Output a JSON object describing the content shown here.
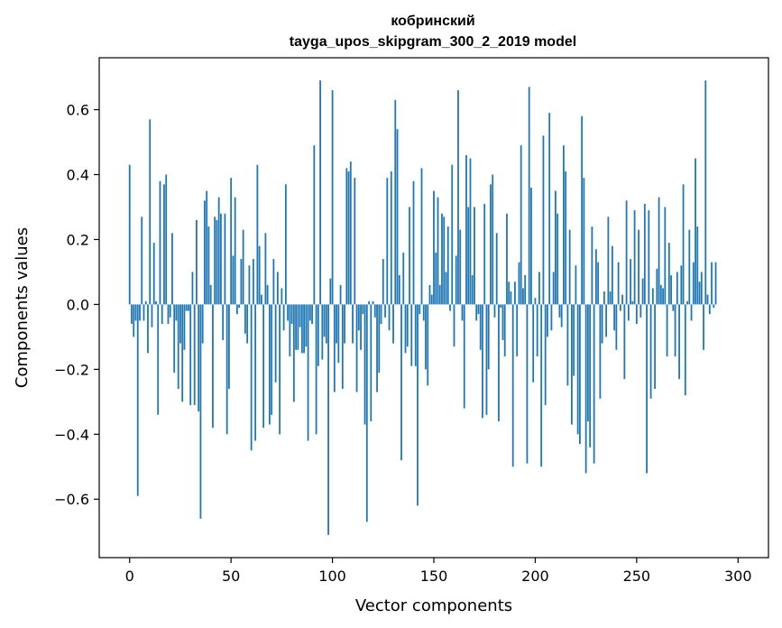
{
  "chart_data": {
    "type": "bar",
    "title": "кобринский",
    "subtitle": "tayga_upos_skipgram_300_2_2019 model",
    "xlabel": "Vector components",
    "ylabel": "Components values",
    "xlim": [
      -15,
      315
    ],
    "ylim": [
      -0.78,
      0.76
    ],
    "xticks": [
      0,
      50,
      100,
      150,
      200,
      250,
      300
    ],
    "yticks": [
      -0.6,
      -0.4,
      -0.2,
      0.0,
      0.2,
      0.4,
      0.6
    ],
    "xtick_labels": [
      "0",
      "50",
      "100",
      "150",
      "200",
      "250",
      "300"
    ],
    "ytick_labels": [
      "−0.6",
      "−0.4",
      "−0.2",
      "0.0",
      "0.2",
      "0.4",
      "0.6"
    ],
    "bar_color": "#1f77b4",
    "grid": false,
    "values": [
      0.43,
      -0.06,
      -0.1,
      -0.05,
      -0.59,
      -0.05,
      0.27,
      -0.05,
      0.01,
      -0.15,
      0.57,
      -0.07,
      0.19,
      0.01,
      -0.34,
      0.38,
      -0.06,
      0.37,
      0.4,
      -0.06,
      -0.04,
      0.22,
      -0.21,
      -0.05,
      -0.26,
      -0.12,
      -0.3,
      -0.14,
      -0.02,
      -0.02,
      -0.31,
      0.1,
      -0.31,
      0.26,
      -0.33,
      -0.66,
      -0.12,
      0.32,
      0.35,
      0.24,
      0.06,
      -0.38,
      0.27,
      0.26,
      0.33,
      0.28,
      -0.11,
      0.28,
      -0.4,
      -0.26,
      0.39,
      0.15,
      0.33,
      -0.03,
      -0.01,
      0.14,
      0.23,
      -0.09,
      -0.12,
      0.12,
      -0.45,
      0.14,
      -0.42,
      0.43,
      0.18,
      0.03,
      -0.38,
      0.22,
      0.06,
      -0.37,
      -0.34,
      0.14,
      -0.24,
      0.1,
      -0.4,
      0.05,
      -0.08,
      0.37,
      -0.05,
      -0.16,
      -0.06,
      -0.3,
      -0.14,
      -0.14,
      -0.07,
      -0.15,
      -0.15,
      -0.13,
      -0.42,
      -0.05,
      -0.06,
      0.49,
      -0.4,
      -0.19,
      0.69,
      -0.17,
      -0.1,
      -0.12,
      -0.71,
      0.08,
      0.66,
      -0.27,
      -0.12,
      -0.18,
      0.06,
      -0.26,
      -0.12,
      0.42,
      0.41,
      0.44,
      -0.12,
      0.39,
      -0.27,
      -0.08,
      -0.14,
      -0.03,
      -0.37,
      -0.67,
      0.01,
      -0.36,
      0.01,
      -0.04,
      -0.27,
      -0.21,
      -0.06,
      0.14,
      -0.04,
      0.39,
      -0.08,
      0.41,
      -0.12,
      0.63,
      0.54,
      0.09,
      -0.48,
      0.16,
      -0.15,
      -0.13,
      0.3,
      -0.19,
      0.38,
      -0.19,
      -0.62,
      -0.03,
      0.42,
      -0.05,
      -0.2,
      -0.25,
      0.06,
      0.03,
      0.35,
      0.16,
      0.33,
      0.06,
      0.28,
      0.27,
      0.1,
      0.24,
      -0.02,
      0.43,
      -0.13,
      0.15,
      0.66,
      0.23,
      -0.05,
      -0.32,
      0.46,
      0.3,
      0.45,
      0.09,
      0.3,
      -0.05,
      -0.03,
      -0.14,
      -0.35,
      0.31,
      -0.34,
      -0.2,
      0.37,
      0.4,
      -0.04,
      0.22,
      -0.36,
      -0.01,
      -0.11,
      -0.16,
      0.28,
      0.07,
      0.04,
      -0.5,
      0.07,
      -0.16,
      0.13,
      0.49,
      0.05,
      0.09,
      -0.49,
      0.67,
      0.36,
      -0.24,
      0.02,
      -0.16,
      0.1,
      -0.5,
      0.52,
      -0.31,
      -0.1,
      0.59,
      -0.08,
      0.1,
      0.35,
      0.28,
      -0.04,
      -0.07,
      0.49,
      0.41,
      -0.25,
      0.23,
      -0.37,
      -0.22,
      0.12,
      -0.4,
      -0.43,
      0.58,
      0.39,
      -0.52,
      -0.36,
      -0.44,
      0.24,
      -0.49,
      0.17,
      0.13,
      -0.29,
      -0.12,
      0.04,
      -0.1,
      0.27,
      0.04,
      0.18,
      -0.08,
      -0.14,
      0.13,
      -0.02,
      0.03,
      -0.23,
      0.32,
      -0.05,
      0.14,
      0.01,
      0.29,
      -0.06,
      0.23,
      -0.04,
      0.08,
      0.31,
      -0.52,
      0.29,
      -0.29,
      0.05,
      -0.26,
      0.11,
      0.33,
      0.06,
      0.05,
      0.3,
      -0.16,
      0.19,
      0.09,
      -0.02,
      -0.16,
      0.1,
      -0.23,
      0.12,
      0.37,
      -0.28,
      0.01,
      0.23,
      -0.05,
      0.13,
      0.45,
      0.24,
      0.07,
      0.1,
      -0.14,
      0.69,
      0.03,
      -0.03,
      0.13,
      -0.01,
      0.13
    ]
  }
}
